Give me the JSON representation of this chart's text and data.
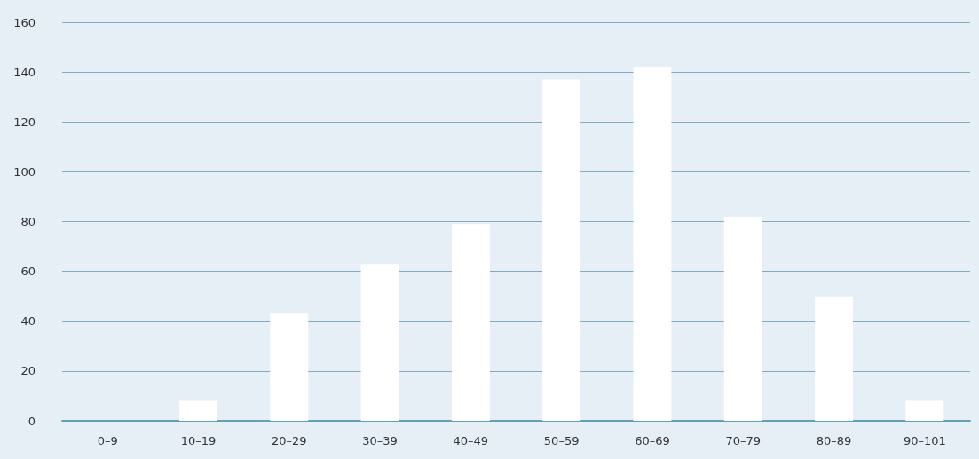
{
  "chart_data": {
    "type": "bar",
    "categories": [
      "0–9",
      "10–19",
      "20–29",
      "30–39",
      "40–49",
      "50–59",
      "60–69",
      "70–79",
      "80–89",
      "90–101"
    ],
    "values": [
      0,
      8,
      43,
      63,
      79,
      137,
      142,
      82,
      50,
      8
    ],
    "color": "#ffffff",
    "ylim": [
      0,
      160
    ],
    "yticks": [
      0,
      20,
      40,
      60,
      80,
      100,
      120,
      140,
      160
    ],
    "grid": "y"
  }
}
